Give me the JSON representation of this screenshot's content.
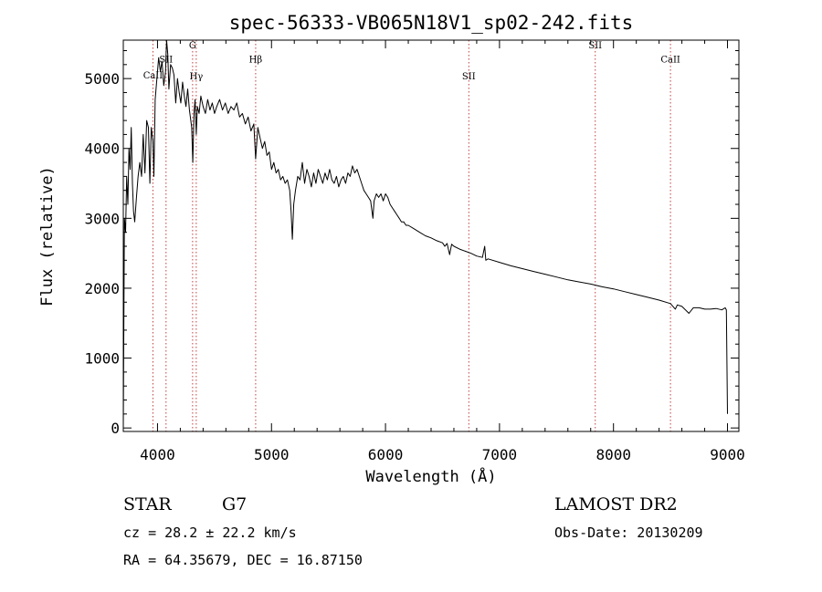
{
  "chart_data": {
    "type": "line",
    "title": "spec-56333-VB065N18V1_sp02-242.fits",
    "xlabel": "Wavelength (Å)",
    "ylabel": "Flux (relative)",
    "xlim": [
      3700,
      9100
    ],
    "ylim": [
      -50,
      5550
    ],
    "grid": false,
    "x_ticks": [
      4000,
      5000,
      6000,
      7000,
      8000,
      9000
    ],
    "y_ticks": [
      0,
      1000,
      2000,
      3000,
      4000,
      5000
    ],
    "series": [
      {
        "color": "#000000",
        "points": [
          [
            3700,
            0
          ],
          [
            3705,
            1500
          ],
          [
            3710,
            3000
          ],
          [
            3720,
            2800
          ],
          [
            3730,
            3600
          ],
          [
            3740,
            3200
          ],
          [
            3750,
            4000
          ],
          [
            3760,
            3700
          ],
          [
            3770,
            4300
          ],
          [
            3780,
            3500
          ],
          [
            3790,
            3100
          ],
          [
            3800,
            2950
          ],
          [
            3815,
            3300
          ],
          [
            3830,
            3600
          ],
          [
            3845,
            3800
          ],
          [
            3860,
            3600
          ],
          [
            3875,
            4200
          ],
          [
            3890,
            3650
          ],
          [
            3905,
            4400
          ],
          [
            3920,
            4300
          ],
          [
            3933,
            3500
          ],
          [
            3945,
            4300
          ],
          [
            3960,
            4100
          ],
          [
            3968,
            3600
          ],
          [
            3980,
            4700
          ],
          [
            3995,
            5000
          ],
          [
            4010,
            5300
          ],
          [
            4025,
            5100
          ],
          [
            4040,
            5250
          ],
          [
            4055,
            4900
          ],
          [
            4070,
            5100
          ],
          [
            4080,
            5550
          ],
          [
            4090,
            5350
          ],
          [
            4100,
            4850
          ],
          [
            4115,
            5200
          ],
          [
            4130,
            5150
          ],
          [
            4145,
            5050
          ],
          [
            4160,
            4650
          ],
          [
            4175,
            5000
          ],
          [
            4190,
            4800
          ],
          [
            4205,
            4650
          ],
          [
            4220,
            4950
          ],
          [
            4235,
            4750
          ],
          [
            4250,
            4600
          ],
          [
            4265,
            4850
          ],
          [
            4280,
            4550
          ],
          [
            4300,
            4300
          ],
          [
            4310,
            3800
          ],
          [
            4320,
            4500
          ],
          [
            4330,
            4700
          ],
          [
            4340,
            4200
          ],
          [
            4350,
            4600
          ],
          [
            4365,
            4500
          ],
          [
            4380,
            4750
          ],
          [
            4400,
            4600
          ],
          [
            4420,
            4500
          ],
          [
            4440,
            4700
          ],
          [
            4460,
            4550
          ],
          [
            4480,
            4650
          ],
          [
            4500,
            4500
          ],
          [
            4520,
            4600
          ],
          [
            4545,
            4700
          ],
          [
            4570,
            4550
          ],
          [
            4595,
            4650
          ],
          [
            4620,
            4500
          ],
          [
            4645,
            4600
          ],
          [
            4670,
            4550
          ],
          [
            4695,
            4650
          ],
          [
            4720,
            4450
          ],
          [
            4745,
            4500
          ],
          [
            4770,
            4350
          ],
          [
            4795,
            4450
          ],
          [
            4820,
            4250
          ],
          [
            4845,
            4350
          ],
          [
            4861,
            3850
          ],
          [
            4880,
            4300
          ],
          [
            4900,
            4150
          ],
          [
            4920,
            4000
          ],
          [
            4940,
            4100
          ],
          [
            4960,
            3900
          ],
          [
            4980,
            3950
          ],
          [
            5000,
            3700
          ],
          [
            5020,
            3800
          ],
          [
            5040,
            3650
          ],
          [
            5060,
            3700
          ],
          [
            5080,
            3550
          ],
          [
            5100,
            3600
          ],
          [
            5120,
            3500
          ],
          [
            5140,
            3550
          ],
          [
            5160,
            3400
          ],
          [
            5172,
            3100
          ],
          [
            5183,
            2700
          ],
          [
            5195,
            3200
          ],
          [
            5210,
            3400
          ],
          [
            5230,
            3600
          ],
          [
            5250,
            3550
          ],
          [
            5270,
            3800
          ],
          [
            5290,
            3500
          ],
          [
            5310,
            3700
          ],
          [
            5330,
            3600
          ],
          [
            5350,
            3450
          ],
          [
            5370,
            3650
          ],
          [
            5390,
            3500
          ],
          [
            5410,
            3700
          ],
          [
            5430,
            3600
          ],
          [
            5450,
            3500
          ],
          [
            5470,
            3650
          ],
          [
            5490,
            3550
          ],
          [
            5510,
            3700
          ],
          [
            5530,
            3550
          ],
          [
            5550,
            3500
          ],
          [
            5570,
            3600
          ],
          [
            5590,
            3450
          ],
          [
            5610,
            3550
          ],
          [
            5630,
            3600
          ],
          [
            5650,
            3500
          ],
          [
            5670,
            3650
          ],
          [
            5690,
            3600
          ],
          [
            5710,
            3750
          ],
          [
            5730,
            3650
          ],
          [
            5750,
            3700
          ],
          [
            5770,
            3600
          ],
          [
            5790,
            3500
          ],
          [
            5810,
            3400
          ],
          [
            5830,
            3350
          ],
          [
            5850,
            3300
          ],
          [
            5870,
            3250
          ],
          [
            5890,
            3000
          ],
          [
            5900,
            3250
          ],
          [
            5920,
            3350
          ],
          [
            5940,
            3300
          ],
          [
            5960,
            3350
          ],
          [
            5980,
            3250
          ],
          [
            6000,
            3350
          ],
          [
            6020,
            3300
          ],
          [
            6040,
            3200
          ],
          [
            6060,
            3150
          ],
          [
            6080,
            3100
          ],
          [
            6100,
            3050
          ],
          [
            6120,
            3000
          ],
          [
            6140,
            2950
          ],
          [
            6160,
            2950
          ],
          [
            6180,
            2900
          ],
          [
            6200,
            2900
          ],
          [
            6250,
            2850
          ],
          [
            6300,
            2800
          ],
          [
            6350,
            2750
          ],
          [
            6400,
            2720
          ],
          [
            6450,
            2680
          ],
          [
            6500,
            2650
          ],
          [
            6520,
            2600
          ],
          [
            6540,
            2640
          ],
          [
            6563,
            2480
          ],
          [
            6580,
            2630
          ],
          [
            6600,
            2600
          ],
          [
            6650,
            2560
          ],
          [
            6700,
            2530
          ],
          [
            6750,
            2500
          ],
          [
            6800,
            2460
          ],
          [
            6850,
            2440
          ],
          [
            6870,
            2600
          ],
          [
            6880,
            2400
          ],
          [
            6900,
            2420
          ],
          [
            7000,
            2370
          ],
          [
            7100,
            2320
          ],
          [
            7200,
            2280
          ],
          [
            7300,
            2240
          ],
          [
            7400,
            2200
          ],
          [
            7500,
            2160
          ],
          [
            7600,
            2120
          ],
          [
            7700,
            2090
          ],
          [
            7800,
            2060
          ],
          [
            7900,
            2020
          ],
          [
            8000,
            1990
          ],
          [
            8100,
            1950
          ],
          [
            8200,
            1910
          ],
          [
            8300,
            1870
          ],
          [
            8400,
            1830
          ],
          [
            8500,
            1780
          ],
          [
            8542,
            1700
          ],
          [
            8560,
            1760
          ],
          [
            8600,
            1740
          ],
          [
            8662,
            1640
          ],
          [
            8700,
            1720
          ],
          [
            8750,
            1720
          ],
          [
            8800,
            1700
          ],
          [
            8850,
            1700
          ],
          [
            8900,
            1710
          ],
          [
            8950,
            1690
          ],
          [
            8980,
            1720
          ],
          [
            8990,
            1690
          ],
          [
            9000,
            200
          ]
        ]
      }
    ],
    "line_markers": [
      {
        "label": "CaII",
        "wavelength": 3960,
        "label_y": 5000
      },
      {
        "label": "SII",
        "wavelength": 4075,
        "label_y": 5230
      },
      {
        "label": "G",
        "wavelength": 4308,
        "label_y": 5430
      },
      {
        "label": "Hγ",
        "wavelength": 4340,
        "label_y": 4990
      },
      {
        "label": "Hβ",
        "wavelength": 4861,
        "label_y": 5230
      },
      {
        "label": "SII",
        "wavelength": 6731,
        "label_y": 4990
      },
      {
        "label": "SII",
        "wavelength": 7840,
        "label_y": 5430
      },
      {
        "label": "CaII",
        "wavelength": 8500,
        "label_y": 5230
      }
    ],
    "marker_color": "#c04040"
  },
  "info": {
    "object_type": "STAR",
    "subclass": "G7",
    "redshift": "cz = 28.2 ± 22.2 km/s",
    "coords": "RA =  64.35679, DEC =  16.87150",
    "survey": "LAMOST DR2",
    "obs_date": "Obs-Date: 20130209"
  }
}
